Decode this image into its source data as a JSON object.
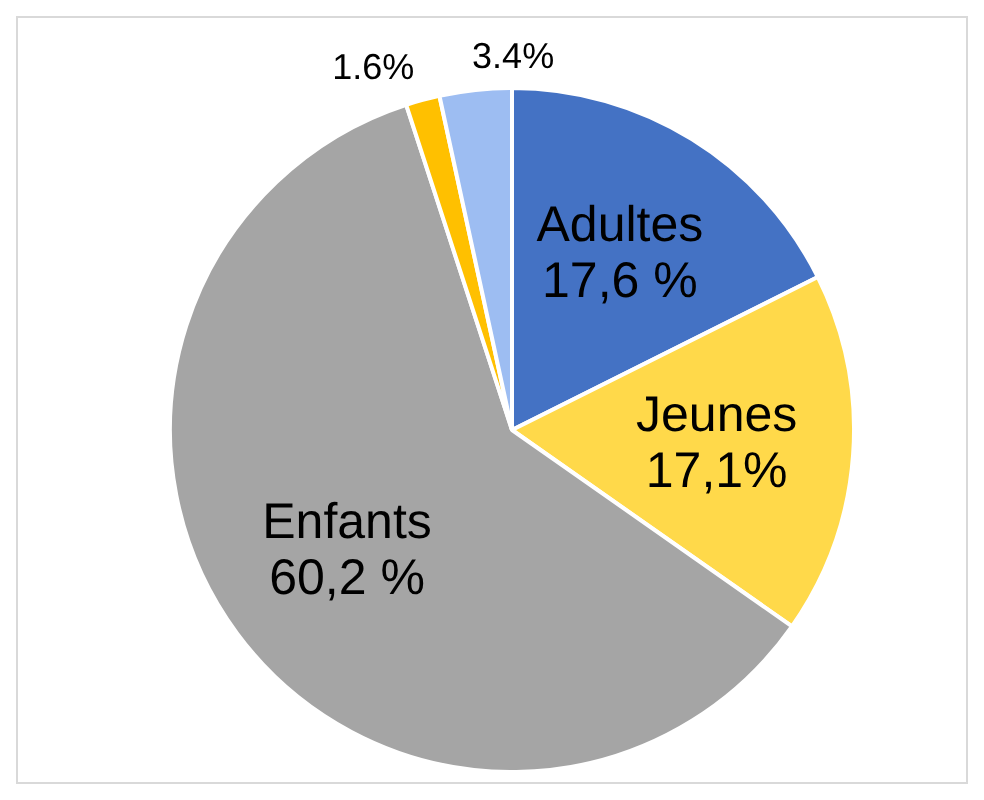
{
  "chart_data": {
    "type": "pie",
    "categories": [
      "Adultes",
      "Jeunes",
      "Enfants",
      null,
      null
    ],
    "values": [
      17.6,
      17.1,
      60.2,
      1.6,
      3.4
    ],
    "colors": [
      "#4472c4",
      "#ffd94a",
      "#a5a5a5",
      "#ffc000",
      "#9dbdf2"
    ],
    "value_labels": [
      "17,6 %",
      "17,1%",
      "60,2 %",
      "1.6%",
      "3.4%"
    ],
    "legend": false
  }
}
